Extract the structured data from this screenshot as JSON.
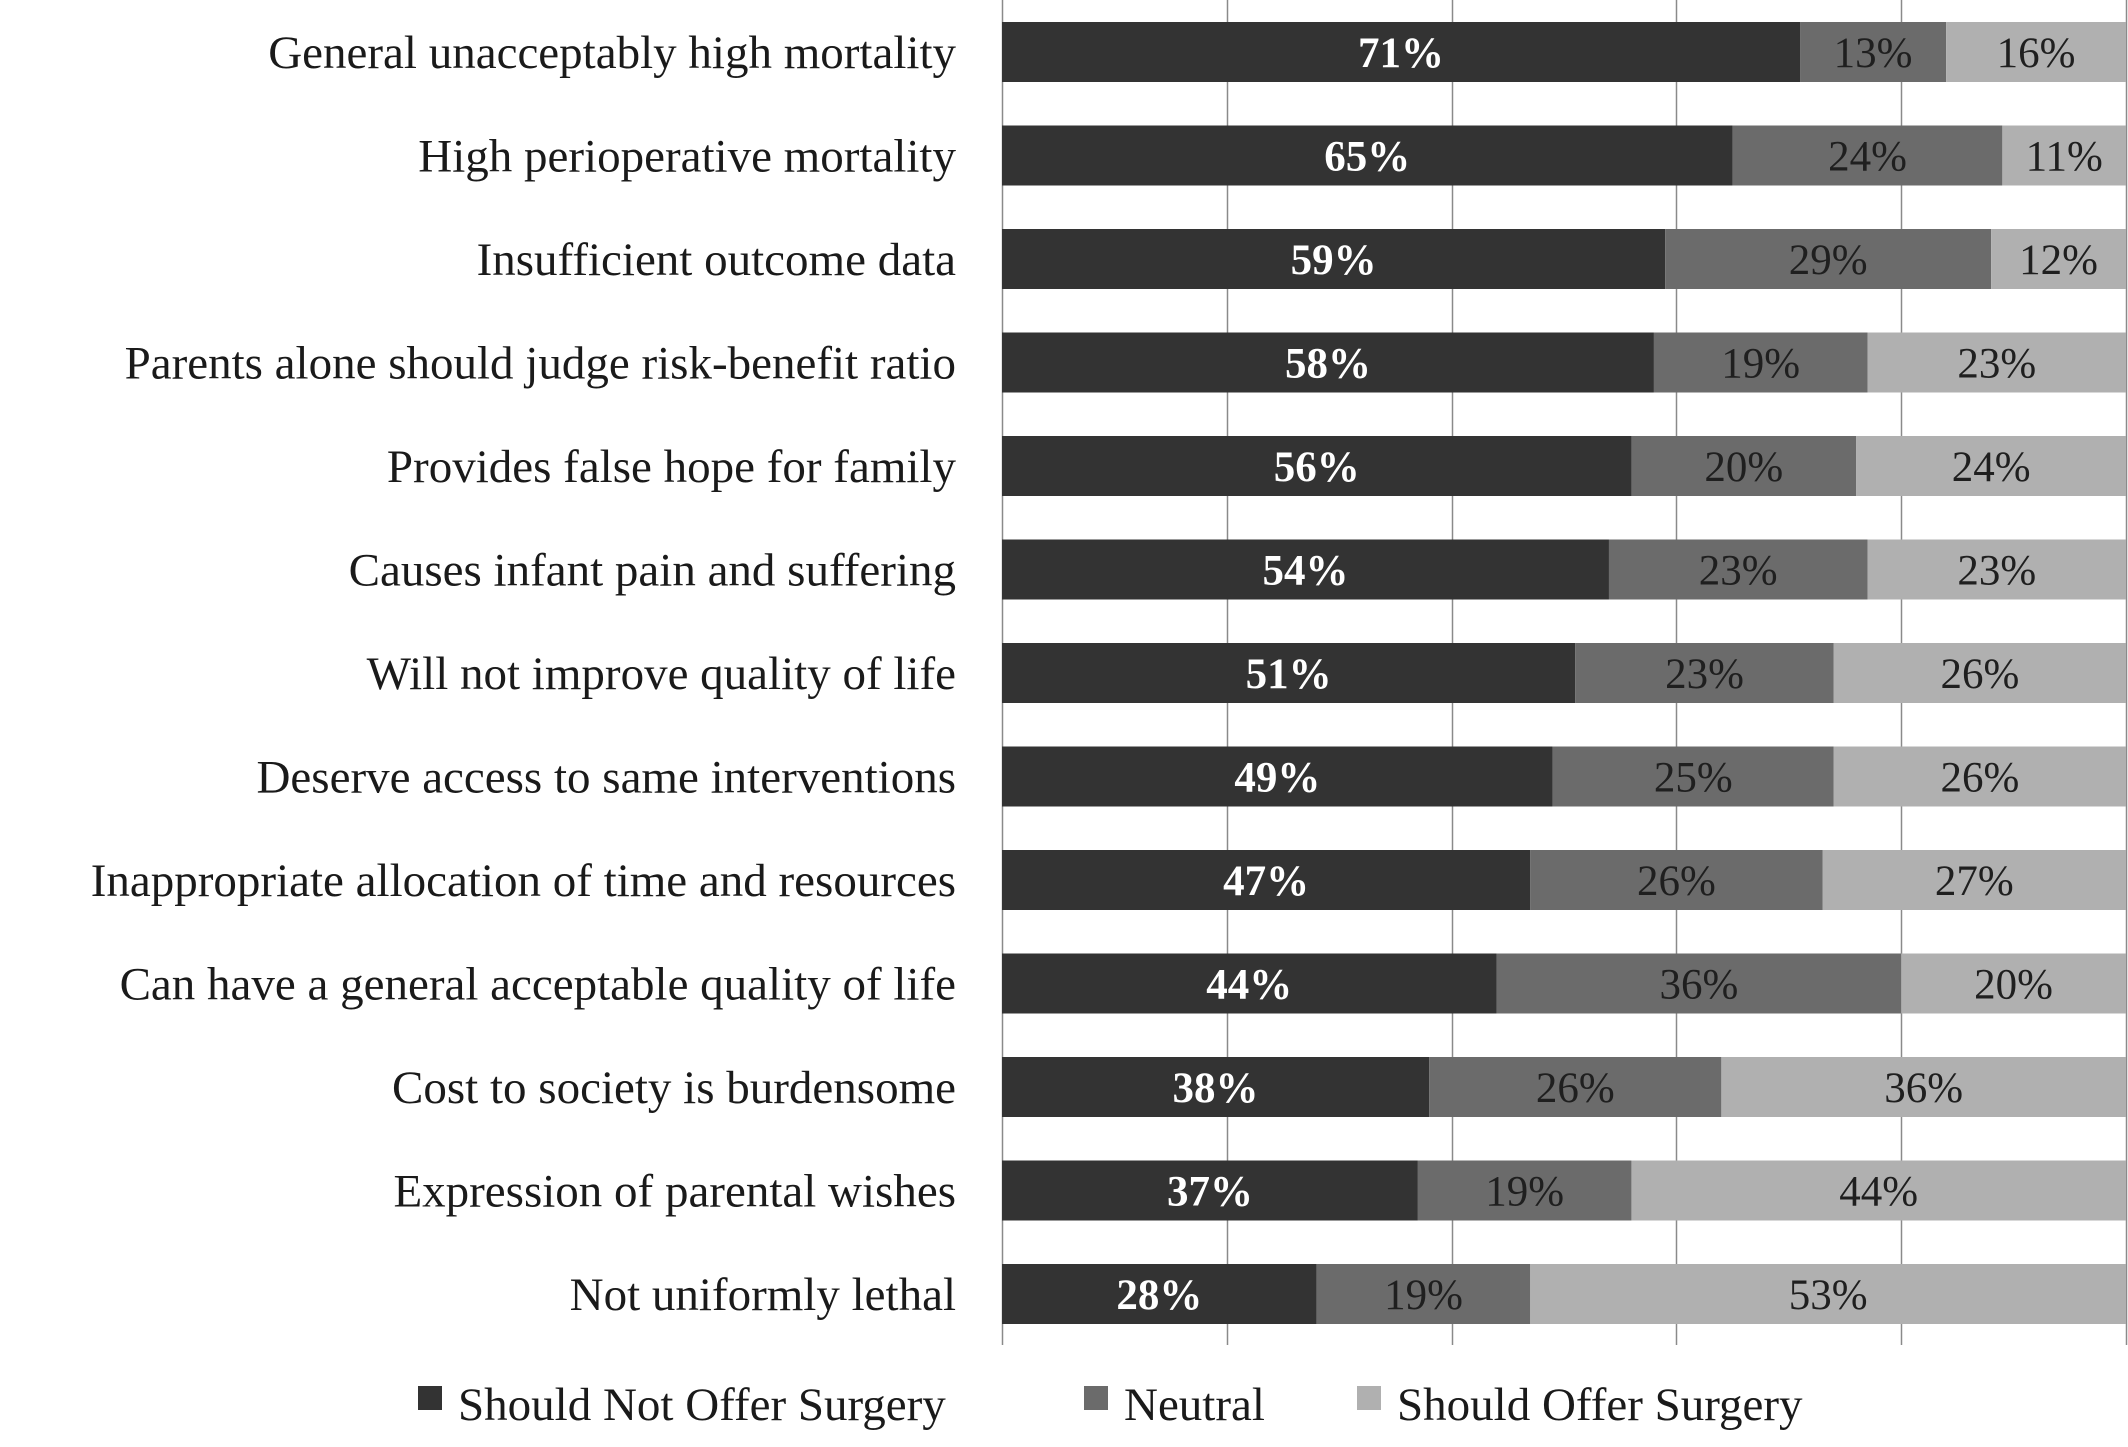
{
  "chart_data": {
    "type": "bar",
    "orientation": "horizontal",
    "stacked": true,
    "percent_stacked": true,
    "title": "",
    "xlabel": "",
    "ylabel": "",
    "xlim": [
      0,
      100
    ],
    "grid": true,
    "legend_position": "bottom",
    "categories": [
      "General unacceptably high mortality",
      "High perioperative mortality",
      "Insufficient outcome data",
      "Parents alone should judge risk-benefit ratio",
      "Provides false hope for family",
      "Causes infant pain and suffering",
      "Will not improve quality of life",
      "Deserve access to same interventions",
      "Inappropriate allocation of time and resources",
      "Can have a general acceptable quality of life",
      "Cost to society is burdensome",
      "Expression of parental wishes",
      "Not uniformly lethal"
    ],
    "series": [
      {
        "name": "Should Not Offer Surgery",
        "color": "#333333",
        "label_color": "#ffffff",
        "label_bold": true,
        "values": [
          71,
          65,
          59,
          58,
          56,
          54,
          51,
          49,
          47,
          44,
          38,
          37,
          28
        ],
        "labels": [
          "71%",
          "65%",
          "59%",
          "58%",
          "56%",
          "54%",
          "51%",
          "49%",
          "47%",
          "44%",
          "38%",
          "37%",
          "28%"
        ]
      },
      {
        "name": "Neutral",
        "color": "#6b6b6b",
        "label_color": "#1f1f1f",
        "label_bold": false,
        "values": [
          13,
          24,
          29,
          19,
          20,
          23,
          23,
          25,
          26,
          36,
          26,
          19,
          19
        ],
        "labels": [
          "13%",
          "24%",
          "29%",
          "19%",
          "20%",
          "23%",
          "23%",
          "25%",
          "26%",
          "36%",
          "26%",
          "19%",
          "19%"
        ]
      },
      {
        "name": "Should Offer Surgery",
        "color": "#b0b0b0",
        "label_color": "#1f1f1f",
        "label_bold": false,
        "values": [
          16,
          11,
          12,
          23,
          24,
          23,
          26,
          26,
          27,
          20,
          36,
          44,
          53
        ],
        "labels": [
          "16%",
          "11%",
          "12%",
          "23%",
          "24%",
          "23%",
          "26%",
          "26%",
          "27%",
          "20%",
          "36%",
          "44%",
          "53%"
        ]
      }
    ],
    "gridline_color": "#8a8a8a",
    "axis_color": "#8a8a8a"
  }
}
